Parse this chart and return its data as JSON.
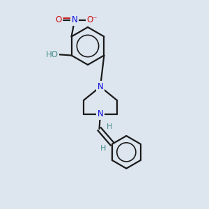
{
  "background_color": "#dde5ee",
  "bond_color": "#1a1a1a",
  "nitrogen_color": "#1010dd",
  "oxygen_color": "#cc1010",
  "heteroatom_label_color": "#4a9090",
  "fig_size": [
    3.0,
    3.0
  ],
  "dpi": 100,
  "xlim": [
    0,
    10
  ],
  "ylim": [
    0,
    10
  ]
}
